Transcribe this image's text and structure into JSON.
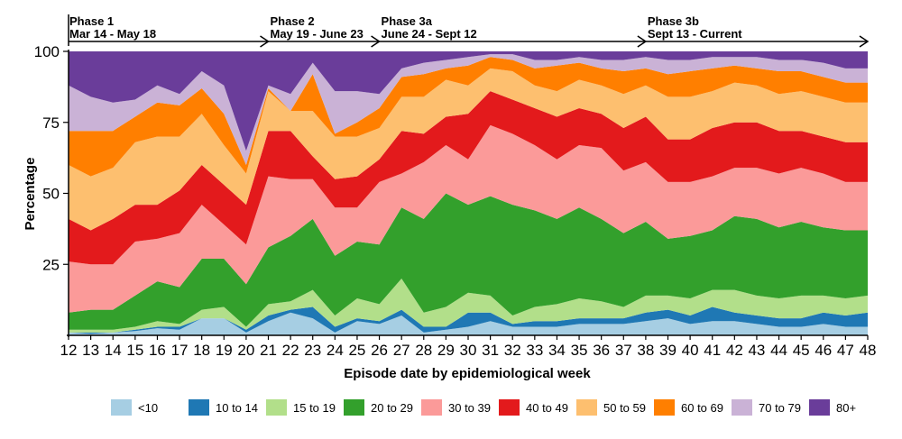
{
  "chart_data": {
    "type": "area",
    "stacked": true,
    "title": "",
    "xlabel": "Episode date by epidemiological week",
    "ylabel": "Percentage",
    "ylim": [
      0,
      100
    ],
    "yticks": [
      25,
      50,
      75,
      100
    ],
    "grid": false,
    "legend_position": "bottom",
    "x": [
      12,
      13,
      14,
      15,
      16,
      17,
      18,
      19,
      20,
      21,
      22,
      23,
      24,
      25,
      26,
      27,
      28,
      29,
      30,
      31,
      32,
      33,
      34,
      35,
      36,
      37,
      38,
      39,
      40,
      41,
      42,
      43,
      44,
      45,
      46,
      47,
      48
    ],
    "boundaries": [
      [
        1,
        0.5,
        1,
        1.5,
        2.5,
        2,
        6,
        6,
        1,
        5,
        8,
        6,
        1,
        5,
        4,
        7,
        1,
        2,
        3,
        5,
        3,
        3,
        3,
        4,
        4,
        4,
        5,
        6,
        4,
        5,
        5,
        4,
        3,
        3,
        4,
        3,
        3
      ],
      [
        1,
        1,
        1,
        2,
        3,
        3,
        6,
        6,
        2,
        7,
        9,
        10,
        3,
        6,
        5,
        9,
        3,
        3,
        8,
        8,
        4,
        5,
        5,
        6,
        6,
        6,
        8,
        9,
        7,
        10,
        8,
        7,
        6,
        6,
        8,
        7,
        8
      ],
      [
        2,
        2,
        2,
        3,
        5,
        4,
        9,
        10,
        3,
        11,
        12,
        16,
        7,
        13,
        11,
        20,
        8,
        10,
        15,
        14,
        7,
        10,
        11,
        13,
        12,
        10,
        14,
        14,
        13,
        16,
        16,
        14,
        13,
        14,
        14,
        13,
        14
      ],
      [
        8,
        9,
        9,
        14,
        19,
        17,
        27,
        27,
        18,
        31,
        35,
        41,
        28,
        33,
        32,
        45,
        41,
        50,
        46,
        49,
        46,
        44,
        41,
        45,
        41,
        36,
        40,
        34,
        35,
        37,
        42,
        41,
        38,
        40,
        38,
        37,
        37
      ],
      [
        26,
        25,
        25,
        33,
        34,
        36,
        46,
        39,
        32,
        56,
        55,
        55,
        45,
        45,
        54,
        57,
        61,
        67,
        62,
        74,
        71,
        67,
        62,
        67,
        66,
        58,
        61,
        54,
        54,
        56,
        59,
        59,
        57,
        59,
        57,
        54,
        54
      ],
      [
        41,
        37,
        41,
        46,
        46,
        51,
        60,
        53,
        46,
        72,
        72,
        63,
        55,
        56,
        62,
        72,
        71,
        77,
        78,
        86,
        83,
        80,
        77,
        80,
        78,
        73,
        77,
        69,
        69,
        73,
        75,
        75,
        72,
        72,
        70,
        68,
        68
      ],
      [
        60,
        56,
        59,
        68,
        70,
        70,
        78,
        67,
        57,
        86,
        79,
        79,
        70,
        70,
        73,
        84,
        84,
        90,
        88,
        94,
        93,
        88,
        86,
        90,
        88,
        85,
        88,
        84,
        84,
        86,
        89,
        88,
        85,
        86,
        84,
        82,
        82
      ],
      [
        72,
        72,
        72,
        77,
        82,
        81,
        87,
        78,
        60,
        87,
        79,
        92,
        71,
        75,
        80,
        91,
        92,
        94,
        95,
        98,
        97,
        94,
        95,
        96,
        94,
        93,
        94,
        92,
        93,
        94,
        95,
        94,
        93,
        93,
        91,
        89,
        89
      ],
      [
        88,
        84,
        82,
        83,
        88,
        85,
        93,
        88,
        65,
        88,
        85,
        96,
        86,
        86,
        85,
        94,
        96,
        97,
        98,
        99,
        99,
        97,
        97,
        98,
        97,
        97,
        98,
        97,
        97,
        98,
        98,
        98,
        97,
        97,
        96,
        94,
        94
      ],
      [
        100,
        100,
        100,
        100,
        100,
        100,
        100,
        100,
        100,
        100,
        100,
        100,
        100,
        100,
        100,
        100,
        100,
        100,
        100,
        100,
        100,
        100,
        100,
        100,
        100,
        100,
        100,
        100,
        100,
        100,
        100,
        100,
        100,
        100,
        100,
        100,
        100
      ]
    ],
    "series": [
      {
        "name": "<10",
        "color": "#a6cee3"
      },
      {
        "name": "10 to 14",
        "color": "#1f78b4"
      },
      {
        "name": "15 to 19",
        "color": "#b2df8a"
      },
      {
        "name": "20 to 29",
        "color": "#33a02c"
      },
      {
        "name": "30 to 39",
        "color": "#fb9a99"
      },
      {
        "name": "40 to 49",
        "color": "#e31a1c"
      },
      {
        "name": "50 to 59",
        "color": "#fdbf6f"
      },
      {
        "name": "60 to 69",
        "color": "#ff7f00"
      },
      {
        "name": "70 to 79",
        "color": "#cab2d6"
      },
      {
        "name": "80+",
        "color": "#6a3d9a"
      }
    ],
    "phases": [
      {
        "name": "Phase 1",
        "range": "Mar 14 - May 18",
        "start_week": 12,
        "end_week": 21
      },
      {
        "name": "Phase 2",
        "range": "May 19 - June 23",
        "start_week": 21,
        "end_week": 26
      },
      {
        "name": "Phase 3a",
        "range": "June 24 - Sept 12",
        "start_week": 26,
        "end_week": 38
      },
      {
        "name": "Phase 3b",
        "range": "Sept 13 - Current",
        "start_week": 38,
        "end_week": 48
      }
    ]
  }
}
